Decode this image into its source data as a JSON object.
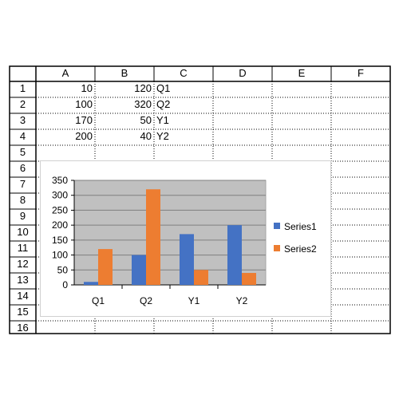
{
  "sheet": {
    "columns": [
      "A",
      "B",
      "C",
      "D",
      "E",
      "F"
    ],
    "rows": [
      "1",
      "2",
      "3",
      "4",
      "5",
      "6",
      "7",
      "8",
      "9",
      "10",
      "11",
      "12",
      "13",
      "14",
      "15",
      "16"
    ],
    "cells": {
      "A1": "10",
      "B1": "120",
      "C1": "Q1",
      "A2": "100",
      "B2": "320",
      "C2": "Q2",
      "A3": "170",
      "B3": "50",
      "C3": "Y1",
      "A4": "200",
      "B4": "40",
      "C4": "Y2"
    }
  },
  "chart_data": {
    "type": "bar",
    "categories": [
      "Q1",
      "Q2",
      "Y1",
      "Y2"
    ],
    "series": [
      {
        "name": "Series1",
        "values": [
          10,
          100,
          170,
          200
        ],
        "color": "#4472c4"
      },
      {
        "name": "Series2",
        "values": [
          120,
          320,
          50,
          40
        ],
        "color": "#ed7d31"
      }
    ],
    "ylim": [
      0,
      350
    ],
    "yticks": [
      "0",
      "50",
      "100",
      "150",
      "200",
      "250",
      "300",
      "350"
    ],
    "grid": true,
    "plot_background": "#c0c0c0",
    "legend_position": "right"
  }
}
